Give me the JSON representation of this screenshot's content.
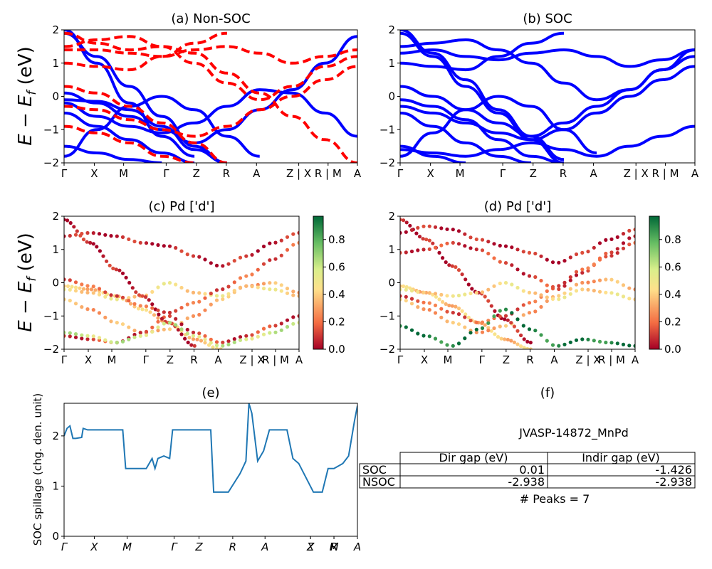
{
  "kpath_labels": [
    "Γ",
    "X",
    "M",
    "Γ",
    "Z",
    "R",
    "A",
    "Z | X",
    "R | M",
    "A"
  ],
  "kpath_labels_italic": [
    "Γ",
    "X",
    "M",
    "Γ",
    "Z",
    "R",
    "A",
    "Z",
    "X",
    "R",
    "M",
    "A"
  ],
  "ylabel_energy": "E − E",
  "ylabel_energy_sub": "f",
  "ylabel_energy_unit": " (eV)",
  "colors": {
    "spin_up": "#0000ff",
    "spin_down": "#ff0000",
    "spillage": "#1f77b4",
    "cmap": [
      "#a50026",
      "#f46d43",
      "#fee08b",
      "#d9ef8b",
      "#66bd63",
      "#006837"
    ]
  },
  "chart_data": [
    {
      "id": "a",
      "type": "line",
      "title": "(a) Non-SOC",
      "ylim": [
        -2,
        2
      ],
      "yticks": [
        "−2",
        "−1",
        "0",
        "1",
        "2"
      ],
      "series": [
        {
          "style": "solid-blue",
          "values": [
            -0.1,
            -0.15,
            -0.4,
            -0.9,
            -1.6,
            -2.0
          ]
        },
        {
          "style": "solid-blue",
          "values": [
            -0.5,
            -0.9,
            -1.3,
            -1.7,
            -2.0
          ]
        },
        {
          "style": "solid-blue",
          "values": [
            -1.5,
            -1.7,
            -1.9,
            -2.0
          ]
        },
        {
          "style": "solid-blue",
          "values": [
            1.9,
            1.2,
            0.3,
            -0.6,
            -1.5,
            -2.0
          ]
        },
        {
          "style": "solid-blue",
          "values": [
            -1.8,
            -1.0,
            -0.3,
            0.0,
            -0.4,
            -1.2,
            -1.8
          ]
        },
        {
          "style": "solid-blue",
          "values": [
            -0.2,
            -0.6,
            -0.9,
            -1.1,
            -0.8,
            -0.3,
            0.2,
            0.1,
            -0.5,
            -1.2
          ]
        },
        {
          "style": "solid-blue",
          "values": [
            2.0,
            1.0,
            -0.2,
            -1.2,
            -1.8
          ]
        },
        {
          "style": "solid-blue",
          "values": [
            0.1,
            -0.2,
            -0.6,
            -1.0,
            -1.4,
            -1.0,
            -0.4,
            0.2,
            1.0,
            1.8
          ]
        },
        {
          "style": "dashed-red",
          "values": [
            0.3,
            0.1,
            -0.3,
            -0.8,
            -1.4,
            -2.0
          ]
        },
        {
          "style": "dashed-red",
          "values": [
            -0.9,
            -1.1,
            -1.4,
            -1.8,
            -2.0
          ]
        },
        {
          "style": "dashed-red",
          "values": [
            1.9,
            1.6,
            1.4,
            1.5,
            1.3,
            0.7,
            0.1,
            -0.6,
            -1.3,
            -2.0
          ]
        },
        {
          "style": "dashed-red",
          "values": [
            1.0,
            0.9,
            0.8,
            1.2,
            1.6,
            1.9
          ]
        },
        {
          "style": "dashed-red",
          "values": [
            1.5,
            1.7,
            1.8,
            1.5,
            1.0,
            0.4,
            -0.1,
            0.3,
            0.9,
            1.2
          ]
        },
        {
          "style": "dashed-red",
          "values": [
            -0.3,
            -0.4,
            -0.7,
            -1.0,
            -1.2,
            -0.9,
            -0.4,
            0.0,
            0.5,
            0.9
          ]
        },
        {
          "style": "dashed-red",
          "values": [
            1.4,
            1.4,
            1.3,
            1.2,
            1.4,
            1.5,
            1.3,
            1.0,
            1.2,
            1.4
          ]
        }
      ]
    },
    {
      "id": "b",
      "type": "line",
      "title": "(b) SOC",
      "ylim": [
        -2,
        2
      ],
      "yticks": [
        "−2",
        "−1",
        "0",
        "1",
        "2"
      ],
      "series": [
        {
          "style": "solid-blue",
          "values": [
            -0.1,
            -0.3,
            -0.7,
            -1.3,
            -1.8,
            -2.0
          ]
        },
        {
          "style": "solid-blue",
          "values": [
            -0.5,
            -0.9,
            -1.4,
            -1.8,
            -2.0
          ]
        },
        {
          "style": "solid-blue",
          "values": [
            -1.5,
            -1.8,
            -2.0
          ]
        },
        {
          "style": "solid-blue",
          "values": [
            1.9,
            1.2,
            0.3,
            -0.5,
            -1.3,
            -2.0
          ]
        },
        {
          "style": "solid-blue",
          "values": [
            0.3,
            0.0,
            -0.4,
            -0.8,
            -1.2,
            -0.8,
            -0.3,
            0.2,
            0.8,
            1.4
          ]
        },
        {
          "style": "solid-blue",
          "values": [
            1.5,
            1.6,
            1.7,
            1.4,
            1.0,
            0.4,
            -0.1,
            0.2,
            0.8,
            1.2
          ]
        },
        {
          "style": "solid-blue",
          "values": [
            -1.8,
            -1.1,
            -0.4,
            0.0,
            -0.3,
            -1.0,
            -1.7
          ]
        },
        {
          "style": "solid-blue",
          "values": [
            1.0,
            0.9,
            0.8,
            1.2,
            1.6,
            1.9
          ]
        },
        {
          "style": "solid-blue",
          "values": [
            -0.3,
            -0.5,
            -0.8,
            -1.1,
            -1.3,
            -1.0,
            -0.5,
            0.0,
            0.5,
            0.9
          ]
        },
        {
          "style": "solid-blue",
          "values": [
            1.3,
            1.4,
            1.2,
            1.1,
            1.3,
            1.4,
            1.2,
            0.9,
            1.1,
            1.4
          ]
        },
        {
          "style": "solid-blue",
          "values": [
            -1.6,
            -1.7,
            -1.8,
            -1.6,
            -1.4,
            -1.6,
            -1.8,
            -1.5,
            -1.2,
            -0.9
          ]
        },
        {
          "style": "solid-blue",
          "values": [
            2.0,
            1.3,
            0.5,
            -0.4,
            -1.2,
            -1.9
          ]
        }
      ]
    },
    {
      "id": "c",
      "type": "scatter",
      "title": "(c)  Pd ['d']",
      "ylim": [
        -2,
        2
      ],
      "yticks": [
        "−2",
        "−1",
        "0",
        "1",
        "2"
      ],
      "colorbar": {
        "range": [
          0.0,
          0.9
        ],
        "ticks": [
          "0.0",
          "0.2",
          "0.4",
          "0.6",
          "0.8"
        ]
      },
      "series": [
        {
          "weight": 0.35,
          "values": [
            -0.1,
            -0.2,
            -0.4,
            -0.8,
            -1.2,
            -1.7,
            -2.0
          ]
        },
        {
          "weight": 0.3,
          "values": [
            -0.5,
            -0.8,
            -1.2,
            -1.5,
            -1.4,
            -1.0,
            -0.5,
            -0.1,
            0.0,
            -0.3
          ]
        },
        {
          "weight": 0.4,
          "values": [
            -0.2,
            -0.3,
            -0.5,
            -0.4,
            0.0,
            -0.3,
            -0.4,
            -0.1,
            -0.2,
            -0.4
          ]
        },
        {
          "weight": 0.1,
          "values": [
            -1.6,
            -1.7,
            -1.8,
            -1.5,
            -1.0,
            -1.5,
            -1.8,
            -1.6,
            -1.3,
            -1.0
          ]
        },
        {
          "weight": 0.05,
          "values": [
            1.9,
            1.2,
            0.4,
            -0.4,
            -1.2,
            -1.9
          ]
        },
        {
          "weight": 0.15,
          "values": [
            0.1,
            -0.1,
            -0.4,
            -0.7,
            -0.9,
            -0.6,
            -0.2,
            0.2,
            0.7,
            1.2
          ]
        },
        {
          "weight": 0.05,
          "values": [
            1.4,
            1.5,
            1.4,
            1.2,
            1.1,
            0.8,
            0.5,
            0.8,
            1.2,
            1.5
          ]
        },
        {
          "weight": 0.55,
          "values": [
            -1.5,
            -1.6,
            -1.8,
            -1.6,
            -1.2,
            -1.6,
            -1.9,
            -1.7,
            -1.5,
            -1.2
          ]
        }
      ]
    },
    {
      "id": "d",
      "type": "scatter",
      "title": "(d) Pd ['d']",
      "ylim": [
        -2,
        2
      ],
      "yticks": [
        "−2",
        "−1",
        "0",
        "1",
        "2"
      ],
      "colorbar": {
        "range": [
          0.0,
          0.9
        ],
        "ticks": [
          "0.0",
          "0.2",
          "0.4",
          "0.6",
          "0.8"
        ]
      },
      "series": [
        {
          "weight": 0.35,
          "values": [
            -0.1,
            -0.3,
            -0.7,
            -1.2,
            -1.7,
            -2.0
          ]
        },
        {
          "weight": 0.3,
          "values": [
            -0.5,
            -0.8,
            -1.2,
            -1.5,
            -1.3,
            -0.9,
            -0.4,
            0.0,
            0.1,
            -0.2
          ]
        },
        {
          "weight": 0.05,
          "values": [
            1.9,
            1.3,
            0.5,
            -0.3,
            -1.1,
            -1.8
          ]
        },
        {
          "weight": 0.1,
          "values": [
            0.9,
            1.0,
            1.2,
            1.0,
            0.6,
            0.2,
            -0.2,
            0.3,
            0.9,
            1.4
          ]
        },
        {
          "weight": 0.15,
          "values": [
            -0.4,
            -0.6,
            -0.9,
            -1.2,
            -1.0,
            -0.6,
            -0.1,
            0.4,
            0.8,
            1.2
          ]
        },
        {
          "weight": 0.05,
          "values": [
            1.5,
            1.7,
            1.6,
            1.3,
            1.1,
            0.9,
            0.6,
            0.9,
            1.3,
            1.6
          ]
        },
        {
          "weight": 0.85,
          "values": [
            -1.3,
            -1.6,
            -1.9,
            -1.4,
            -0.8,
            -1.4,
            -1.9,
            -1.7,
            -1.8,
            -1.9
          ]
        },
        {
          "weight": 0.4,
          "values": [
            -0.2,
            -0.3,
            -0.4,
            -0.3,
            0.0,
            -0.3,
            -0.5,
            -0.2,
            -0.3,
            -0.5
          ]
        }
      ]
    },
    {
      "id": "e",
      "type": "line",
      "title": "(e)",
      "ylabel": "SOC spillage (chg. den. unit)",
      "ylim": [
        0,
        2.65
      ],
      "yticks": [
        "0",
        "1",
        "2"
      ],
      "x": [
        0,
        0.01,
        0.02,
        0.03,
        0.04,
        0.06,
        0.065,
        0.08,
        0.1,
        0.15,
        0.2,
        0.21,
        0.25,
        0.28,
        0.3,
        0.31,
        0.32,
        0.34,
        0.36,
        0.37,
        0.38,
        0.4,
        0.45,
        0.5,
        0.51,
        0.53,
        0.56,
        0.6,
        0.62,
        0.63,
        0.64,
        0.66,
        0.68,
        0.7,
        0.73,
        0.75,
        0.76,
        0.78,
        0.8,
        0.85,
        0.88,
        0.9,
        0.92,
        0.95,
        0.97,
        0.99,
        1.0
      ],
      "values": [
        2.0,
        2.15,
        2.2,
        1.95,
        1.95,
        1.97,
        2.15,
        2.12,
        2.12,
        2.12,
        2.12,
        1.35,
        1.35,
        1.35,
        1.55,
        1.35,
        1.55,
        1.6,
        1.55,
        2.12,
        2.12,
        2.12,
        2.12,
        2.12,
        0.88,
        0.88,
        0.88,
        1.25,
        1.5,
        2.65,
        2.45,
        1.5,
        1.7,
        2.12,
        2.12,
        2.12,
        2.12,
        1.55,
        1.45,
        0.88,
        0.88,
        1.35,
        1.35,
        1.45,
        1.6,
        2.3,
        2.6
      ]
    }
  ],
  "info": {
    "title": "(f)",
    "material": "JVASP-14872_MnPd",
    "headers": [
      "",
      "Dir gap (eV)",
      "Indir gap (eV)"
    ],
    "rows": [
      {
        "label": "SOC",
        "dir": "0.01",
        "indir": "-1.426"
      },
      {
        "label": "NSOC",
        "dir": "-2.938",
        "indir": "-2.938"
      }
    ],
    "peaks": "# Peaks = 7"
  }
}
